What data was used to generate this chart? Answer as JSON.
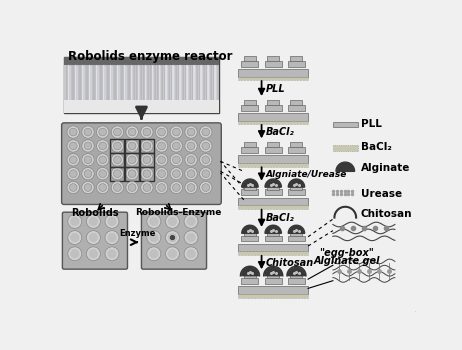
{
  "title": "Robolids enzyme reactor",
  "bg_color": "#f0f0f0",
  "border_color": "#888888",
  "pll_color": "#b8b8b8",
  "bacl2_color": "#c8c8b0",
  "alginate_color": "#404040",
  "steps": [
    "PLL",
    "BaCl₂",
    "Algniate/Urease",
    "BaCl₂",
    "Chitosan"
  ],
  "legend_items": [
    "PLL",
    "BaCl₂",
    "Alginate",
    "Urease",
    "Chitosan"
  ],
  "eggbox_text1": "\"egg-box\"",
  "eggbox_text2": "Alginate gel",
  "robolids_label": "Robolids",
  "robolids_enzyme_label": "Robolids-Enzyme",
  "enzyme_label": "Enzyme",
  "photo_bg": "#c0c0c0",
  "tube_color": "#a0a0a0",
  "plate_bg": "#b0b0b0",
  "well_color": "#d0d0d0",
  "well_edge": "#808080"
}
